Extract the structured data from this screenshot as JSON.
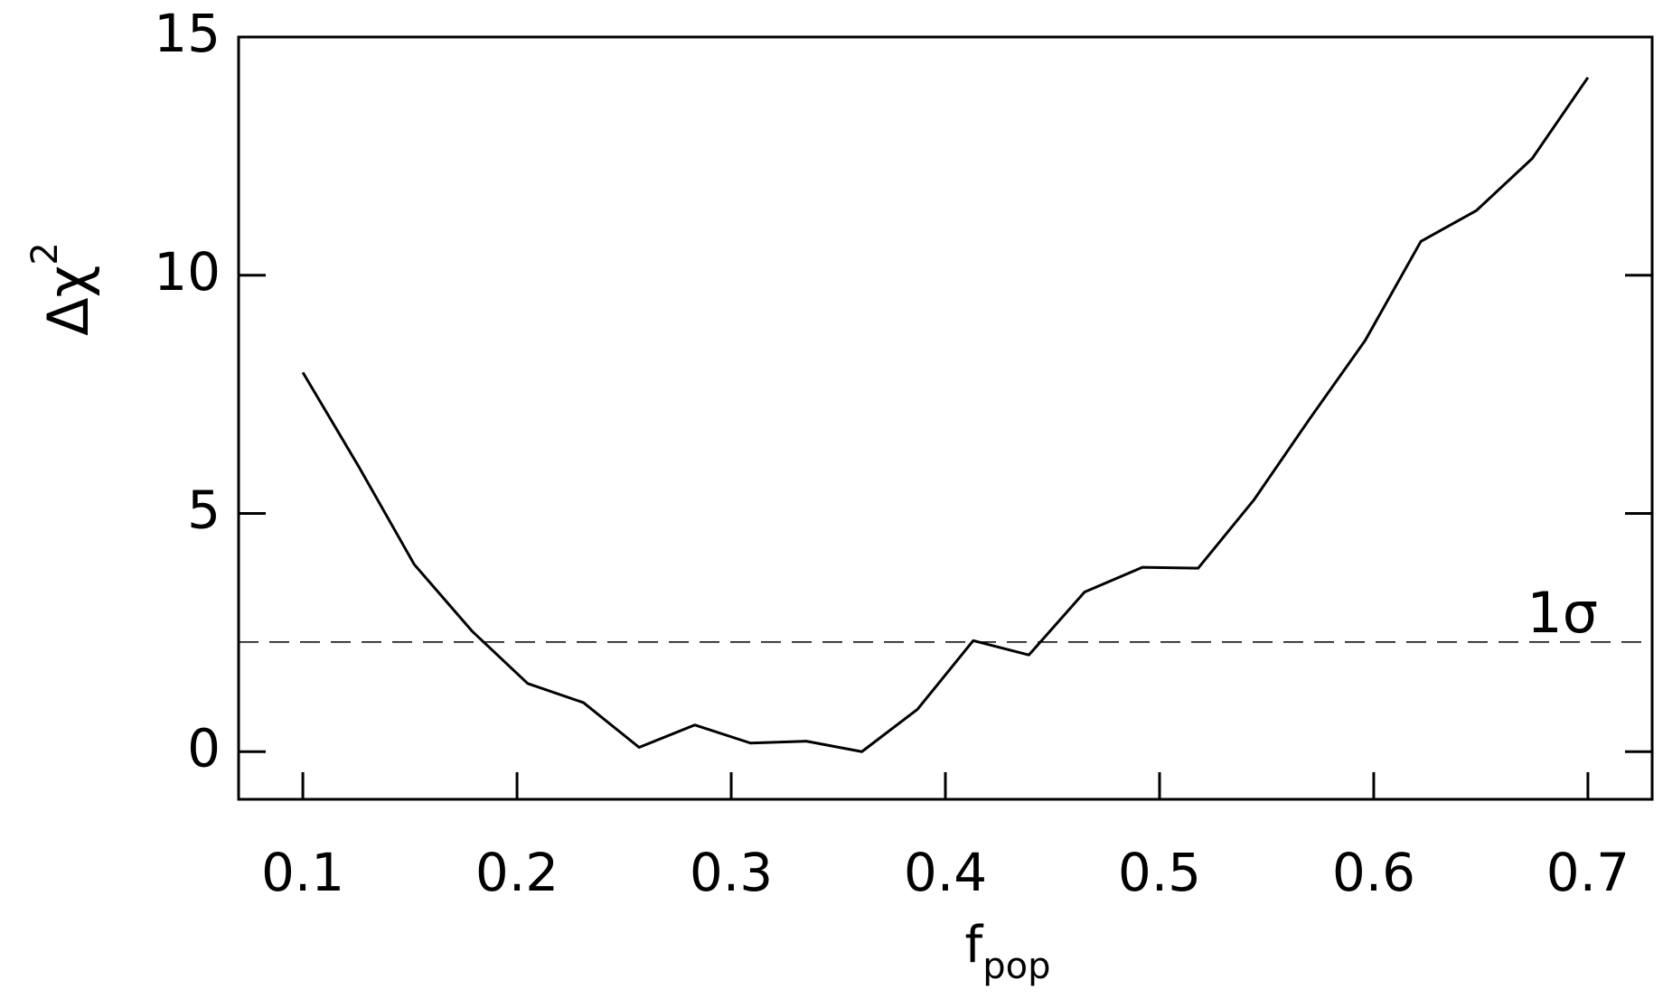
{
  "chart_data": {
    "type": "line",
    "xlabel": "f",
    "xlabel_sub": "pop",
    "ylabel": "Δχ",
    "ylabel_sup": "2",
    "x": [
      0.1,
      0.126,
      0.152,
      0.179,
      0.205,
      0.231,
      0.257,
      0.283,
      0.309,
      0.335,
      0.361,
      0.387,
      0.413,
      0.439,
      0.465,
      0.492,
      0.518,
      0.544,
      0.57,
      0.596,
      0.622,
      0.648,
      0.674,
      0.7
    ],
    "series": [
      {
        "color": "#000000",
        "values": [
          7.96,
          5.99,
          3.93,
          2.53,
          1.43,
          1.03,
          0.09,
          0.56,
          0.18,
          0.22,
          0.0,
          0.89,
          2.33,
          2.03,
          3.35,
          3.87,
          3.85,
          5.28,
          6.98,
          8.63,
          10.71,
          11.36,
          12.45,
          14.15
        ]
      }
    ],
    "reference_line": {
      "y": 2.3,
      "label": "1σ",
      "style": "dashed"
    },
    "xlim": [
      0.07,
      0.73
    ],
    "ylim": [
      -1,
      15
    ],
    "xticks": [
      0.1,
      0.2,
      0.3,
      0.4,
      0.5,
      0.6,
      0.7
    ],
    "yticks": [
      0,
      5,
      10,
      15
    ]
  }
}
